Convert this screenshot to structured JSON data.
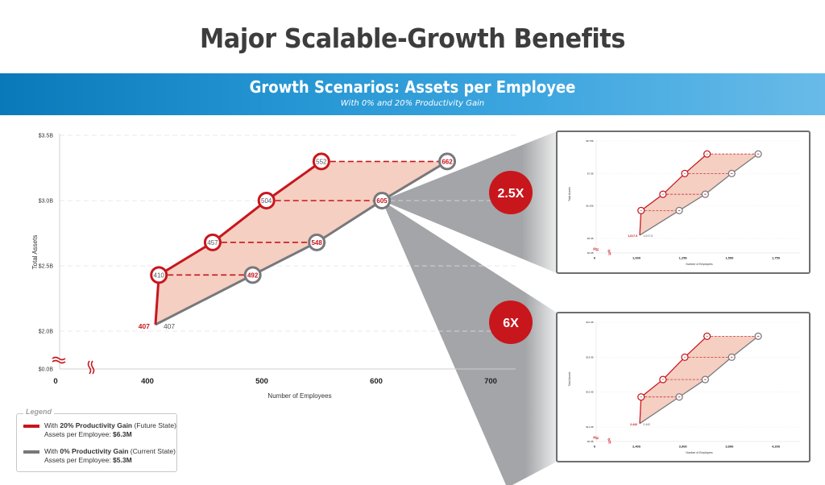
{
  "header": {
    "title": "Major Scalable-Growth Benefits",
    "banner_title": "Growth Scenarios: Assets per Employee",
    "banner_subtitle": "With 0% and 20% Productivity Gain"
  },
  "colors": {
    "future_state": "#c8161d",
    "current_state": "#77787b",
    "fill": "#f4cfc2",
    "banner_left": "#0a79b9",
    "banner_right": "#68bbe8",
    "badge": "#c8161d",
    "projection": "#a6a8ab"
  },
  "badges": {
    "inset1": "2.5X",
    "inset2": "6X"
  },
  "legend": {
    "title": "Legend",
    "items": [
      {
        "prefix": "With ",
        "bold": "20% Productivity Gain",
        "suffix": " (Future State)",
        "line2_prefix": "Assets per Employee: ",
        "line2_bold": "$6.3M",
        "color": "#c8161d"
      },
      {
        "prefix": "With ",
        "bold": "0% Productivity Gain",
        "suffix": " (Current State)",
        "line2_prefix": "Assets per Employee: ",
        "line2_bold": "$5.3M",
        "color": "#77787b"
      }
    ]
  },
  "chart_data": [
    {
      "type": "line",
      "title": "Growth Scenarios: Assets per Employee",
      "subtitle": "With 0% and 20% Productivity Gain",
      "xlabel": "Number of Employees",
      "ylabel": "Total Assets",
      "x_ticks": [
        "0",
        "400",
        "500",
        "600",
        "700"
      ],
      "y_ticks": [
        "$0.0B",
        "$2.0B",
        "$2.5B",
        "$3.0B",
        "$3.5B"
      ],
      "axis_breaks": true,
      "grid": "horizontal dashed",
      "series": [
        {
          "name": "With 20% Productivity Gain (Future State)",
          "x": [
            407,
            410,
            457,
            504,
            552
          ],
          "y": [
            2.05,
            2.43,
            2.68,
            3.0,
            3.3
          ],
          "labels": [
            "407",
            "410",
            "457",
            "504",
            "552"
          ]
        },
        {
          "name": "With 0% Productivity Gain (Current State)",
          "x": [
            407,
            492,
            548,
            605,
            662
          ],
          "y": [
            2.05,
            2.43,
            2.68,
            3.0,
            3.3
          ],
          "labels": [
            "407",
            "492",
            "548",
            "605",
            "662"
          ]
        }
      ],
      "annotations": [
        "Dashed connectors link equal asset levels: 410↔492, 457↔548, 504↔605, 552↔662"
      ]
    },
    {
      "type": "line",
      "title": "2.5X scenario",
      "xlabel": "Number of Employees",
      "ylabel": "Total Assets",
      "x_ticks": [
        "0",
        "1,000",
        "1,250",
        "1,500",
        "1,750"
      ],
      "y_ticks": [
        "$0.0B",
        "$5.0B",
        "$6.25B",
        "$7.5B",
        "$8.75B"
      ],
      "start_label": "1,017.5",
      "series": [
        {
          "name": "Future State",
          "x": [
            1017.5,
            1025,
            1142.5,
            1260,
            1380
          ],
          "y": [
            5.125,
            6.075,
            6.7,
            7.5,
            8.25
          ]
        },
        {
          "name": "Current State",
          "x": [
            1017.5,
            1230,
            1370,
            1512.5,
            1655
          ],
          "y": [
            5.125,
            6.075,
            6.7,
            7.5,
            8.25
          ]
        }
      ]
    },
    {
      "type": "line",
      "title": "6X scenario",
      "xlabel": "Number of Employees",
      "ylabel": "Total Assets",
      "x_ticks": [
        "0",
        "2,400",
        "3,000",
        "3,600",
        "4,200"
      ],
      "y_ticks": [
        "$0.0B",
        "$12.0B",
        "$15.0B",
        "$18.0B",
        "$21.0B"
      ],
      "start_label": "2,442",
      "series": [
        {
          "name": "Future State",
          "x": [
            2442,
            2460,
            2742,
            3024,
            3312
          ],
          "y": [
            12.3,
            14.58,
            16.08,
            18.0,
            19.8
          ]
        },
        {
          "name": "Current State",
          "x": [
            2442,
            2952,
            3288,
            3630,
            3972
          ],
          "y": [
            12.3,
            14.58,
            16.08,
            18.0,
            19.8
          ]
        }
      ]
    }
  ]
}
